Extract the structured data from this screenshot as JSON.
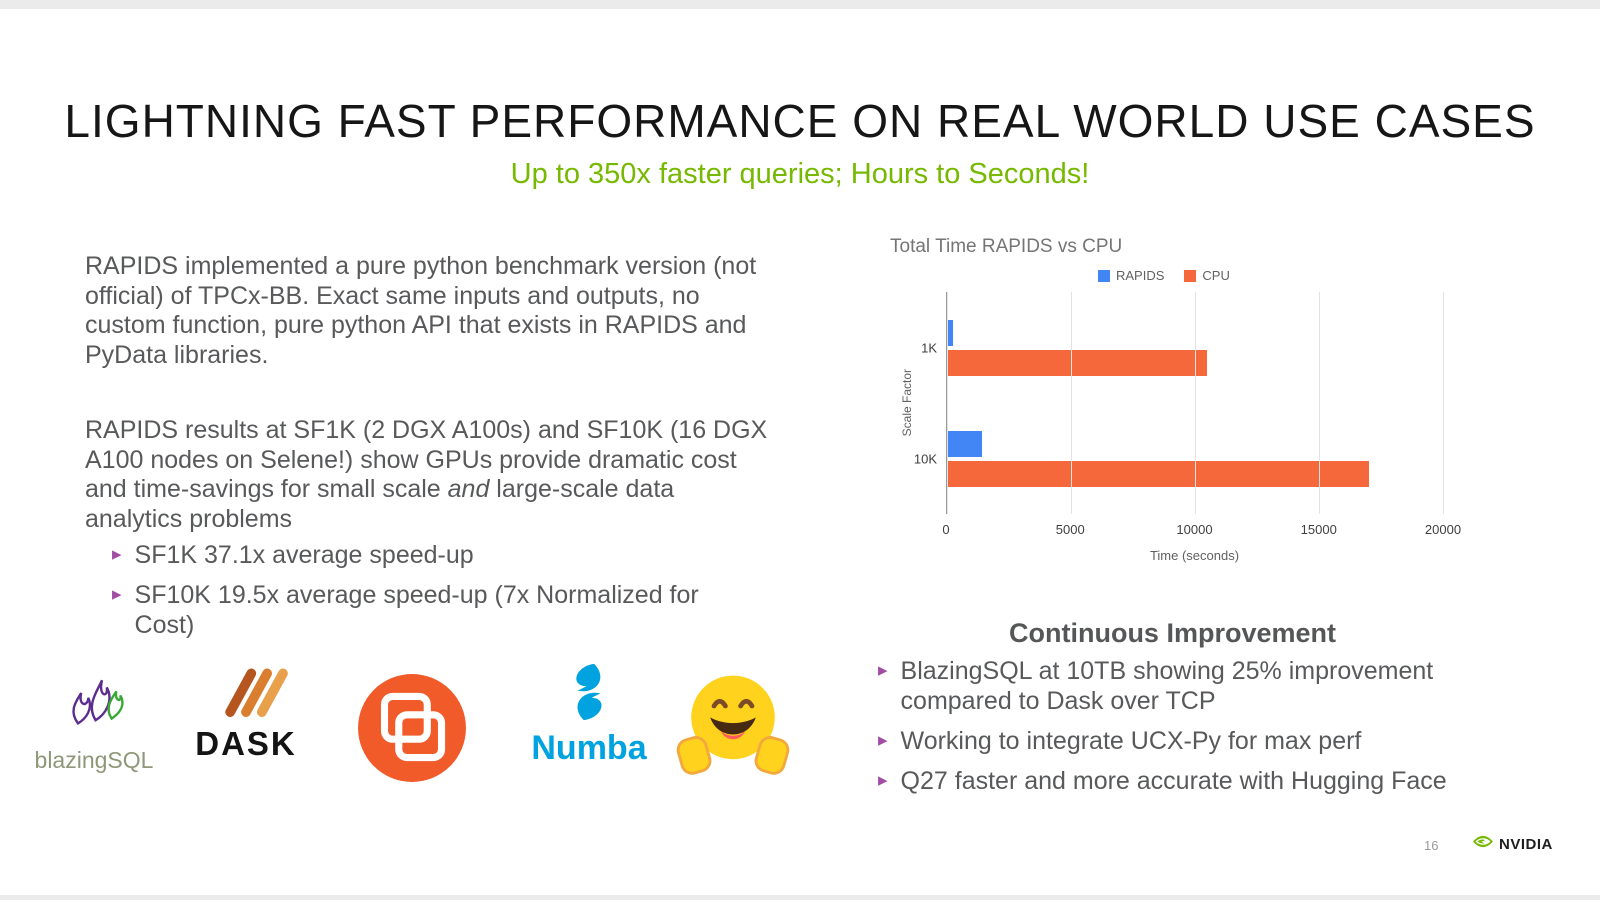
{
  "slide": {
    "title": "LIGHTNING FAST PERFORMANCE ON REAL WORLD USE CASES",
    "subtitle": "Up to 350x faster queries; Hours to Seconds!",
    "page_number": "16",
    "brand": "NVIDIA"
  },
  "left": {
    "paragraph1": "RAPIDS implemented a pure python benchmark version (not official) of TPCx-BB. Exact same inputs and outputs, no custom function, pure python API that exists in RAPIDS and PyData libraries.",
    "paragraph2_pre": "RAPIDS results at SF1K (2 DGX A100s) and SF10K (16 DGX A100 nodes on Selene!) show GPUs provide dramatic cost and time-savings for small scale ",
    "paragraph2_italic": "and",
    "paragraph2_post": " large-scale data analytics problems",
    "bullets": [
      "SF1K 37.1x average speed-up",
      "SF10K 19.5x average speed-up (7x Normalized for Cost)"
    ]
  },
  "logos": {
    "blazingsql_label": "blazingSQL",
    "dask_label": "DASK",
    "numba_label": "Numba"
  },
  "right": {
    "heading": "Continuous Improvement",
    "bullets": [
      "BlazingSQL at 10TB showing 25% improvement compared to Dask over TCP",
      "Working to integrate UCX-Py for max perf",
      "Q27 faster and more accurate with Hugging Face"
    ]
  },
  "chart_data": {
    "type": "bar",
    "orientation": "horizontal",
    "title": "Total Time RAPIDS vs CPU",
    "categories": [
      "1K",
      "10K"
    ],
    "series": [
      {
        "name": "RAPIDS",
        "color": "#4285f4",
        "values": [
          250,
          1400
        ]
      },
      {
        "name": "CPU",
        "color": "#f4683b",
        "values": [
          10500,
          17000
        ]
      }
    ],
    "xlabel": "Time (seconds)",
    "ylabel": "Scale Factor",
    "xlim": [
      0,
      20000
    ],
    "xticks": [
      0,
      5000,
      10000,
      15000,
      20000
    ],
    "grid": true,
    "legend_position": "top-right"
  }
}
